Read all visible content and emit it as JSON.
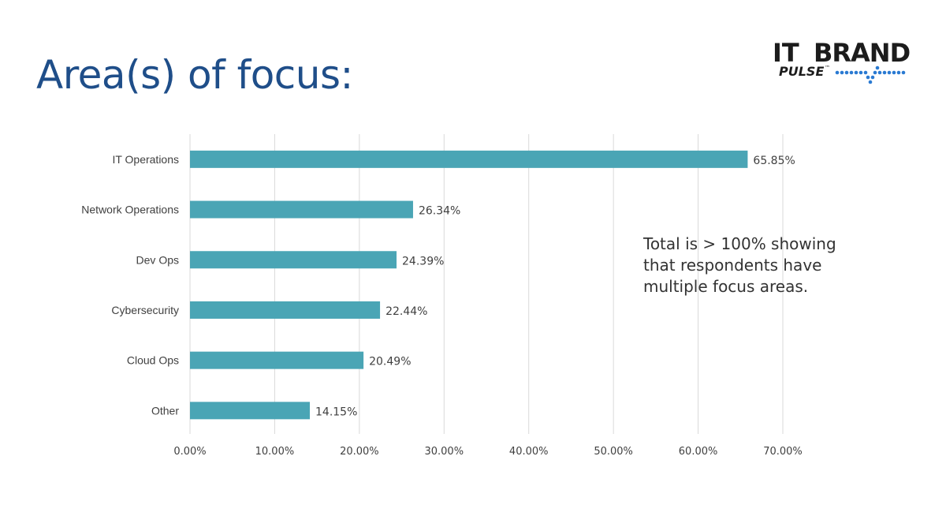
{
  "slide": {
    "title": "Area(s) of focus:",
    "note": "Total is > 100% showing that respondents have multiple focus areas."
  },
  "logo": {
    "text_top_left": "IT",
    "text_top_right": "BRAND",
    "text_bottom": "PULSE",
    "tm": "™",
    "primary_color": "#111111",
    "dot_color": "#2a7ad2"
  },
  "chart_data": {
    "type": "bar",
    "orientation": "horizontal",
    "categories": [
      "IT Operations",
      "Network Operations",
      "Dev Ops",
      "Cybersecurity",
      "Cloud Ops",
      "Other"
    ],
    "values": [
      65.85,
      26.34,
      24.39,
      22.44,
      20.49,
      14.15
    ],
    "value_labels": [
      "65.85%",
      "26.34%",
      "24.39%",
      "22.44%",
      "20.49%",
      "14.15%"
    ],
    "xlim": [
      0,
      70
    ],
    "x_ticks": [
      0,
      10,
      20,
      30,
      40,
      50,
      60,
      70
    ],
    "x_tick_labels": [
      "0.00%",
      "10.00%",
      "20.00%",
      "30.00%",
      "40.00%",
      "50.00%",
      "60.00%",
      "70.00%"
    ],
    "grid": true,
    "bar_color": "#4aa5b5",
    "grid_color": "#d9d9d9"
  }
}
